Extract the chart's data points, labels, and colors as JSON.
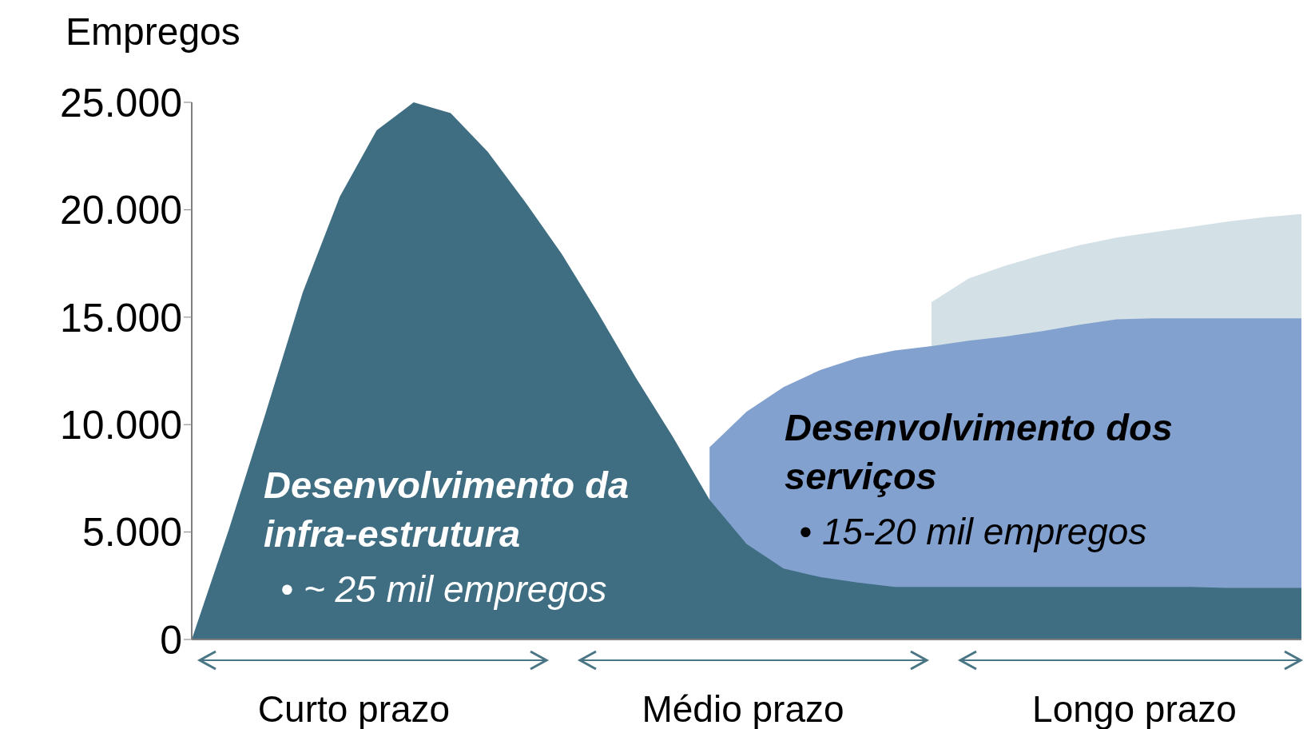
{
  "chart_data": {
    "type": "area",
    "ylabel": "Empregos",
    "categories": [
      null,
      null,
      null,
      null,
      null,
      null,
      null,
      null,
      null,
      null,
      null,
      null,
      null,
      null,
      null,
      null,
      null,
      null,
      null,
      null,
      null,
      null,
      null,
      null,
      null,
      null,
      null,
      null,
      null,
      null,
      null
    ],
    "series": [
      {
        "color": "#d3e0e6",
        "values": [
          null,
          null,
          null,
          null,
          null,
          null,
          null,
          null,
          null,
          null,
          null,
          null,
          null,
          null,
          null,
          null,
          null,
          null,
          null,
          null,
          15700,
          16800,
          17400,
          17900,
          18350,
          18700,
          18950,
          19200,
          19450,
          19650,
          19800
        ]
      },
      {
        "color": "#83a1cf",
        "values": [
          null,
          null,
          null,
          null,
          null,
          null,
          null,
          null,
          null,
          null,
          null,
          null,
          null,
          null,
          8950,
          10600,
          11750,
          12550,
          13100,
          13450,
          13650,
          13900,
          14100,
          14350,
          14650,
          14900,
          14950,
          14950,
          14950,
          14950,
          14950
        ]
      },
      {
        "color": "#3f6e82",
        "values": [
          0,
          5100,
          10550,
          16150,
          20600,
          23700,
          25000,
          24500,
          22700,
          20400,
          17950,
          15150,
          12200,
          9450,
          6500,
          4450,
          3300,
          2900,
          2650,
          2450,
          2450,
          2450,
          2450,
          2450,
          2450,
          2450,
          2450,
          2450,
          2400,
          2400,
          2400
        ]
      }
    ],
    "ylim": [
      0,
      25000
    ],
    "yticks": [
      {
        "value": 0,
        "label": "0"
      },
      {
        "value": 5000,
        "label": "5.000"
      },
      {
        "value": 10000,
        "label": "10.000"
      },
      {
        "value": 15000,
        "label": "15.000"
      },
      {
        "value": 20000,
        "label": "20.000"
      },
      {
        "value": 25000,
        "label": "25.000"
      }
    ],
    "tick_labels": "y",
    "grid": false,
    "legend": false,
    "annotations": [
      "Desenvolvimento da infra-estrutura",
      "• ~ 25 mil empregos",
      "Desenvolvimento dos serviços",
      "• 15-20 mil empregos",
      "Curto prazo",
      "Médio prazo",
      "Longo prazo"
    ]
  }
}
